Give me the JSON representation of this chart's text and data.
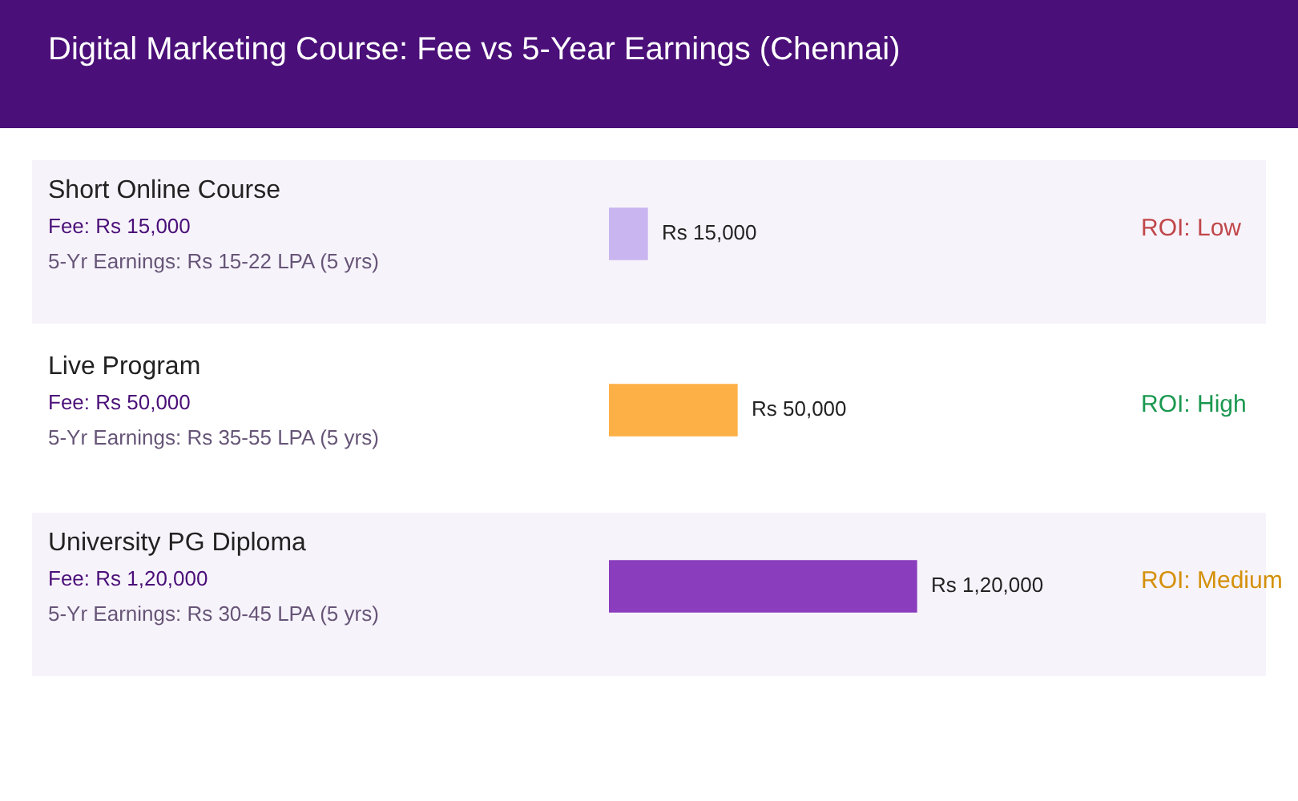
{
  "chart_data": {
    "type": "bar",
    "orientation": "horizontal",
    "title": "Digital Marketing Course: Fee vs 5-Year Earnings (Chennai)",
    "categories": [
      "Short Online Course",
      "Live Program",
      "University PG Diploma"
    ],
    "values": [
      15000,
      50000,
      120000
    ],
    "colors": [
      "#c9b5ef",
      "#fdb045",
      "#8a3dbd"
    ],
    "value_labels": [
      "Rs 15,000",
      "Rs 50,000",
      "Rs 1,20,000"
    ],
    "annotations": [
      "Fee: Rs 15,000",
      "5-Yr Earnings: Rs 15-22 LPA (5 yrs)",
      "ROI: Low",
      "Fee: Rs 50,000",
      "5-Yr Earnings: Rs 35-55 LPA (5 yrs)",
      "ROI: High",
      "Fee: Rs 1,20,000",
      "5-Yr Earnings: Rs 30-45 LPA (5 yrs)",
      "ROI: Medium"
    ],
    "legend": false
  }
}
